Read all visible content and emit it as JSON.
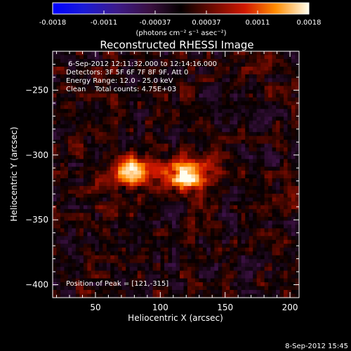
{
  "chart_data": {
    "type": "heatmap",
    "title": "Reconstructed RHESSI Image",
    "xlabel": "Heliocentric X (arcsec)",
    "ylabel": "Heliocentric Y (arcsec)",
    "xlim": [
      17,
      207
    ],
    "ylim": [
      -410,
      -220
    ],
    "xticks": [
      50,
      100,
      150,
      200
    ],
    "yticks": [
      -250,
      -300,
      -350,
      -400
    ],
    "colorbar": {
      "ticks": [
        "-0.0018",
        "-0.0011",
        "-0.00037",
        "0.00037",
        "0.0011",
        "0.0018"
      ],
      "label": "(photons cm⁻² s⁻¹ asec⁻²)",
      "range": [
        -0.0018,
        0.0018
      ]
    },
    "info_lines": [
      " 6-Sep-2012 12:11:32.000 to 12:14:16.000",
      "Detectors: 3F 5F 6F 7F 8F 9F, Att 0",
      "Energy Range: 12.0 - 25.0 keV",
      "Clean    Total counts: 4.75E+03"
    ],
    "peak_text": "Position of Peak = [121,-315]",
    "peak": [
      121,
      -315
    ],
    "sources": [
      {
        "x": 121,
        "y": -315,
        "intensity": 0.0018
      },
      {
        "x": 78,
        "y": -312,
        "intensity": 0.0016
      }
    ],
    "timestamp": "8-Sep-2012 15:45"
  }
}
